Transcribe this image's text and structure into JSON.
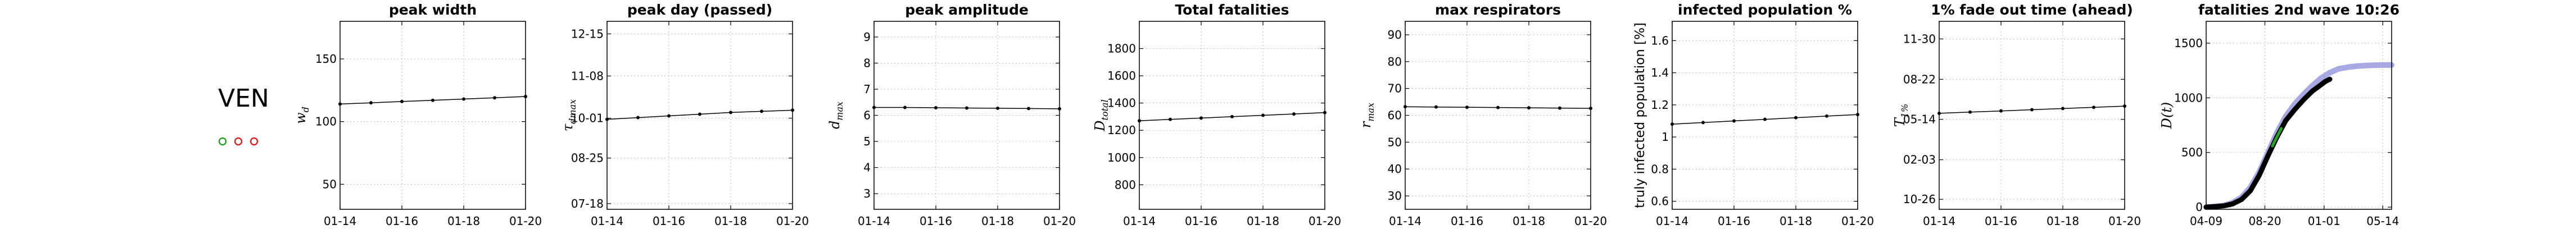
{
  "country": {
    "code": "VEN",
    "markers": [
      {
        "color": "#2ca02c"
      },
      {
        "color": "#d62728"
      },
      {
        "color": "#d62728"
      }
    ]
  },
  "chart_data": [
    {
      "type": "line",
      "title": "peak width",
      "ylabel": "w_d",
      "ylabel_kind": "math",
      "x": [
        "01-14",
        "01-15",
        "01-16",
        "01-17",
        "01-18",
        "01-19",
        "01-20"
      ],
      "xticks": [
        "01-14",
        "01-16",
        "01-18",
        "01-20"
      ],
      "values": [
        114,
        115,
        116,
        117,
        118,
        119,
        120
      ],
      "ylim": [
        30,
        180
      ],
      "yticks": [
        {
          "v": 50,
          "label": "50"
        },
        {
          "v": 100,
          "label": "100"
        },
        {
          "v": 150,
          "label": "150"
        }
      ],
      "grid": true
    },
    {
      "type": "line",
      "title": "peak day (passed)",
      "ylabel": "τ_dmax",
      "ylabel_kind": "math",
      "x": [
        "01-14",
        "01-15",
        "01-16",
        "01-17",
        "01-18",
        "01-19",
        "01-20"
      ],
      "xticks": [
        "01-14",
        "01-16",
        "01-18",
        "01-20"
      ],
      "values": [
        274,
        275.5,
        277,
        278.5,
        280,
        281,
        282
      ],
      "ylim": [
        195,
        360
      ],
      "yticks": [
        {
          "v": 200,
          "label": "07-18"
        },
        {
          "v": 240,
          "label": "08-25"
        },
        {
          "v": 275,
          "label": "10-01"
        },
        {
          "v": 312,
          "label": "11-08"
        },
        {
          "v": 349,
          "label": "12-15"
        }
      ],
      "grid": true
    },
    {
      "type": "line",
      "title": "peak amplitude",
      "ylabel": "d_max",
      "ylabel_kind": "math",
      "x": [
        "01-14",
        "01-15",
        "01-16",
        "01-17",
        "01-18",
        "01-19",
        "01-20"
      ],
      "xticks": [
        "01-14",
        "01-16",
        "01-18",
        "01-20"
      ],
      "values": [
        6.3,
        6.3,
        6.29,
        6.28,
        6.27,
        6.26,
        6.25
      ],
      "ylim": [
        2.4,
        9.6
      ],
      "yticks": [
        {
          "v": 3,
          "label": "3"
        },
        {
          "v": 4,
          "label": "4"
        },
        {
          "v": 5,
          "label": "5"
        },
        {
          "v": 6,
          "label": "6"
        },
        {
          "v": 7,
          "label": "7"
        },
        {
          "v": 8,
          "label": "8"
        },
        {
          "v": 9,
          "label": "9"
        }
      ],
      "grid": true
    },
    {
      "type": "line",
      "title": "Total fatalities",
      "ylabel": "D_total",
      "ylabel_kind": "math",
      "x": [
        "01-14",
        "01-15",
        "01-16",
        "01-17",
        "01-18",
        "01-19",
        "01-20"
      ],
      "xticks": [
        "01-14",
        "01-16",
        "01-18",
        "01-20"
      ],
      "values": [
        1270,
        1280,
        1290,
        1300,
        1310,
        1320,
        1330
      ],
      "ylim": [
        620,
        2000
      ],
      "yticks": [
        {
          "v": 800,
          "label": "800"
        },
        {
          "v": 1000,
          "label": "1000"
        },
        {
          "v": 1200,
          "label": "1200"
        },
        {
          "v": 1400,
          "label": "1400"
        },
        {
          "v": 1600,
          "label": "1600"
        },
        {
          "v": 1800,
          "label": "1800"
        }
      ],
      "grid": true
    },
    {
      "type": "line",
      "title": "max respirators",
      "ylabel": "r_max",
      "ylabel_kind": "math",
      "x": [
        "01-14",
        "01-15",
        "01-16",
        "01-17",
        "01-18",
        "01-19",
        "01-20"
      ],
      "xticks": [
        "01-14",
        "01-16",
        "01-18",
        "01-20"
      ],
      "values": [
        63.2,
        63.1,
        63.0,
        62.9,
        62.8,
        62.7,
        62.6
      ],
      "ylim": [
        25,
        95
      ],
      "yticks": [
        {
          "v": 30,
          "label": "30"
        },
        {
          "v": 40,
          "label": "40"
        },
        {
          "v": 50,
          "label": "50"
        },
        {
          "v": 60,
          "label": "60"
        },
        {
          "v": 70,
          "label": "70"
        },
        {
          "v": 80,
          "label": "80"
        },
        {
          "v": 90,
          "label": "90"
        }
      ],
      "grid": true
    },
    {
      "type": "line",
      "title": "infected population %",
      "ylabel": "truly infected population [%]",
      "ylabel_kind": "text",
      "x": [
        "01-14",
        "01-15",
        "01-16",
        "01-17",
        "01-18",
        "01-19",
        "01-20"
      ],
      "xticks": [
        "01-14",
        "01-16",
        "01-18",
        "01-20"
      ],
      "values": [
        1.08,
        1.09,
        1.1,
        1.11,
        1.12,
        1.13,
        1.14
      ],
      "ylim": [
        0.55,
        1.72
      ],
      "yticks": [
        {
          "v": 0.6,
          "label": "0.6"
        },
        {
          "v": 0.8,
          "label": "0.8"
        },
        {
          "v": 1.0,
          "label": "1"
        },
        {
          "v": 1.2,
          "label": "1.2"
        },
        {
          "v": 1.4,
          "label": "1.4"
        },
        {
          "v": 1.6,
          "label": "1.6"
        }
      ],
      "grid": true
    },
    {
      "type": "line",
      "title": "1% fade out time (ahead)",
      "ylabel": "T_1%",
      "ylabel_kind": "math",
      "x": [
        "01-14",
        "01-15",
        "01-16",
        "01-17",
        "01-18",
        "01-19",
        "01-20"
      ],
      "xticks": [
        "01-14",
        "01-16",
        "01-18",
        "01-20"
      ],
      "values": [
        500,
        503,
        506,
        509,
        512,
        515,
        518
      ],
      "ylim": [
        260,
        730
      ],
      "yticks": [
        {
          "v": 285,
          "label": "10-26"
        },
        {
          "v": 384,
          "label": "02-03"
        },
        {
          "v": 485,
          "label": "05-14"
        },
        {
          "v": 585,
          "label": "08-22"
        },
        {
          "v": 686,
          "label": "11-30"
        }
      ],
      "grid": true
    },
    {
      "type": "line",
      "title": "fatalities 2nd wave 10:26",
      "ylabel": "D(t)",
      "ylabel_kind": "math",
      "xticks": [
        {
          "v": 0,
          "label": "04-09"
        },
        {
          "v": 133,
          "label": "08-20"
        },
        {
          "v": 267,
          "label": "01-01"
        },
        {
          "v": 400,
          "label": "05-14"
        }
      ],
      "xlim": [
        0,
        420
      ],
      "ylim": [
        -20,
        1700
      ],
      "yticks": [
        {
          "v": 0,
          "label": "0"
        },
        {
          "v": 500,
          "label": "500"
        },
        {
          "v": 1000,
          "label": "1000"
        },
        {
          "v": 1500,
          "label": "1500"
        }
      ],
      "grid": true,
      "series": [
        {
          "kind": "model",
          "color": "#9999dd",
          "x": [
            0,
            20,
            40,
            60,
            80,
            100,
            120,
            140,
            160,
            180,
            200,
            220,
            240,
            260,
            280,
            300,
            320,
            340,
            360,
            380,
            400,
            420
          ],
          "values": [
            0,
            5,
            15,
            40,
            90,
            180,
            320,
            500,
            680,
            830,
            940,
            1030,
            1110,
            1180,
            1230,
            1265,
            1280,
            1290,
            1295,
            1298,
            1300,
            1300
          ]
        },
        {
          "kind": "observed",
          "color": "#000000",
          "x": [
            0,
            20,
            40,
            60,
            80,
            100,
            120,
            140,
            160,
            180,
            200,
            220,
            240,
            260,
            270,
            280
          ],
          "values": [
            0,
            5,
            12,
            30,
            70,
            150,
            290,
            470,
            640,
            790,
            890,
            980,
            1060,
            1120,
            1150,
            1170
          ]
        },
        {
          "kind": "recent",
          "color": "#2ca02c",
          "x": [
            150,
            160,
            170
          ],
          "values": [
            560,
            640,
            720
          ]
        }
      ]
    }
  ]
}
